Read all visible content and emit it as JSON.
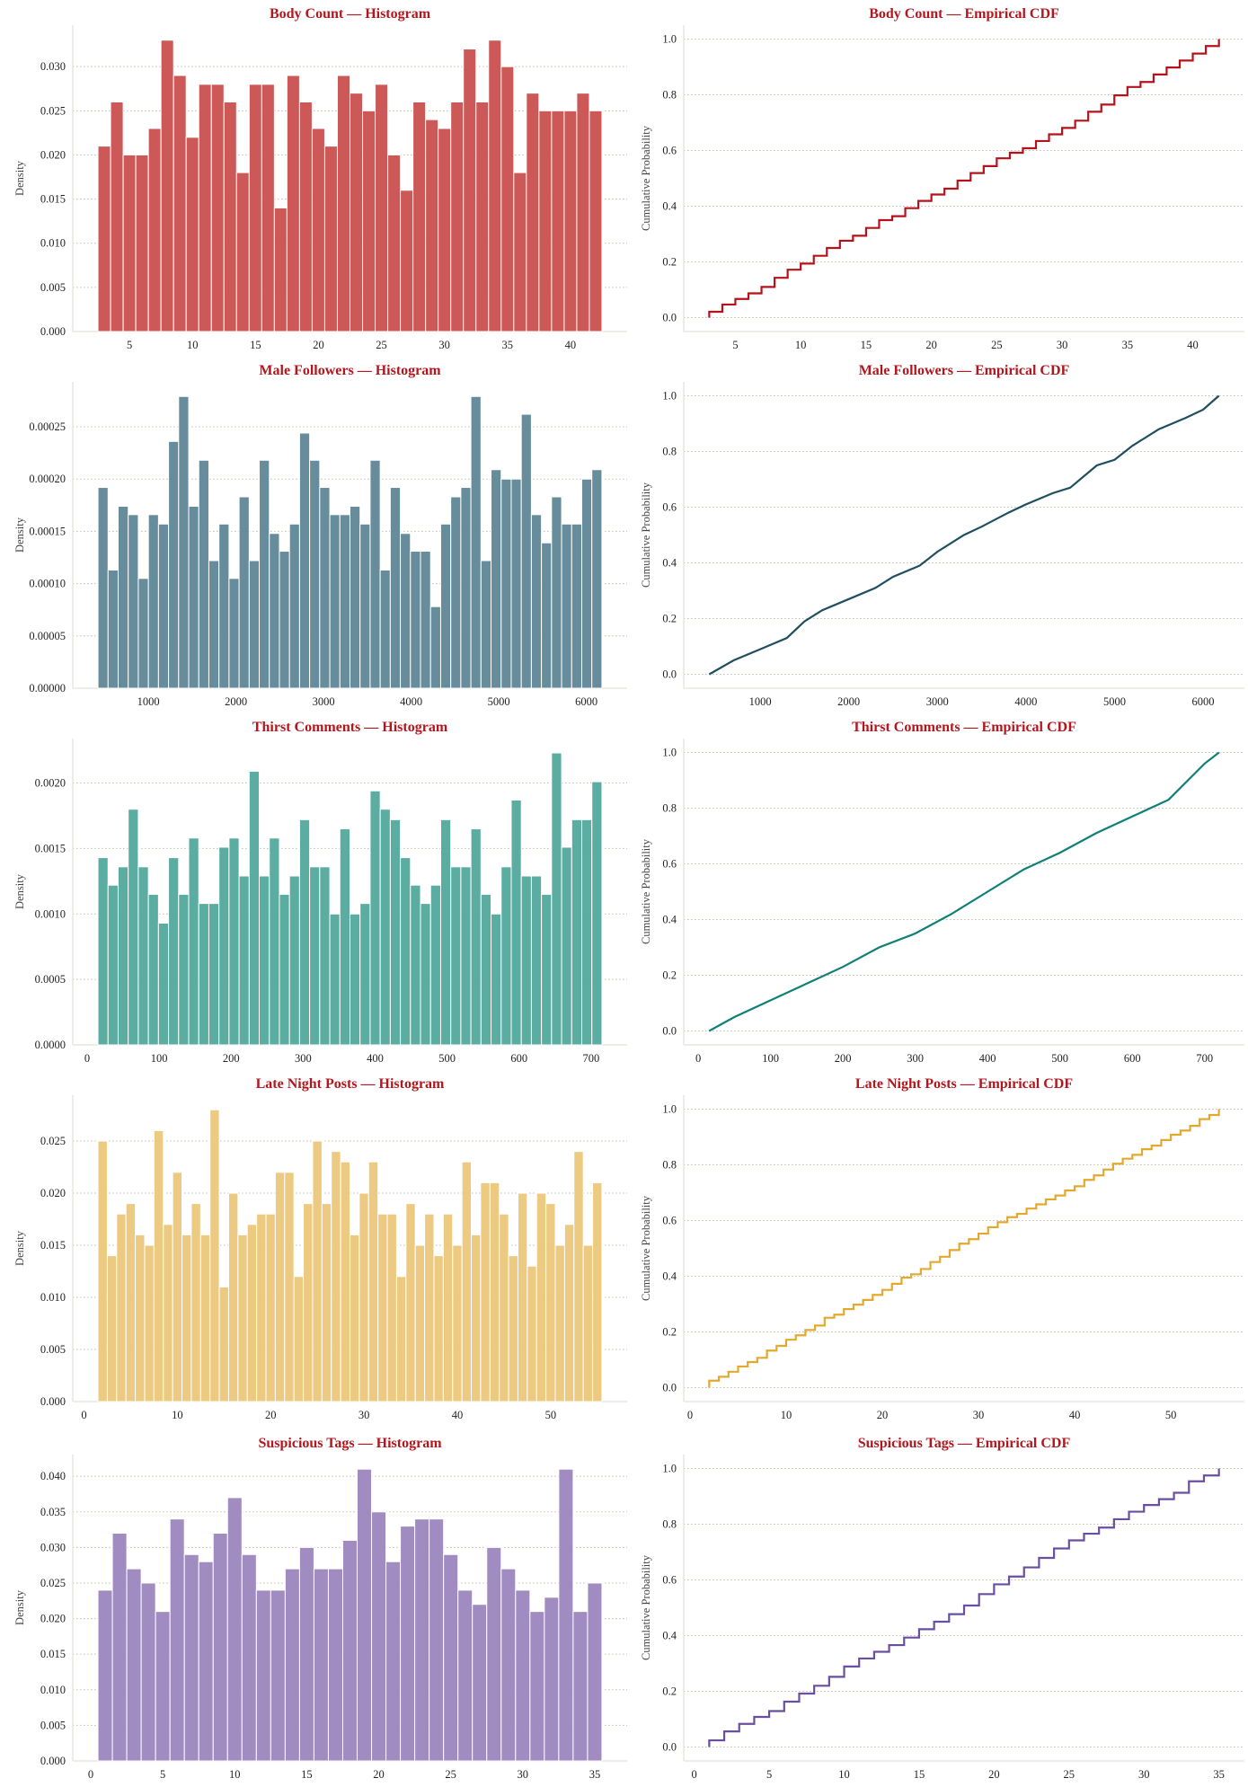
{
  "chart_data": [
    {
      "type": "bar",
      "kind": "histogram",
      "title": "Body Count — Histogram",
      "ylabel": "Density",
      "color": "#c9504f",
      "bin_start": 2.5,
      "bin_width": 1,
      "values": [
        0.021,
        0.026,
        0.02,
        0.02,
        0.023,
        0.033,
        0.029,
        0.022,
        0.028,
        0.028,
        0.026,
        0.018,
        0.028,
        0.028,
        0.014,
        0.029,
        0.026,
        0.023,
        0.021,
        0.029,
        0.027,
        0.025,
        0.028,
        0.02,
        0.016,
        0.026,
        0.024,
        0.023,
        0.026,
        0.032,
        0.026,
        0.033,
        0.03,
        0.018,
        0.027,
        0.025,
        0.025,
        0.025,
        0.027,
        0.025
      ],
      "xlim": [
        0.5,
        44.5
      ],
      "ylim": [
        0,
        0.0347
      ],
      "xticks": [
        "5",
        "10",
        "15",
        "20",
        "25",
        "30",
        "35",
        "40"
      ],
      "xtick_values": [
        5,
        10,
        15,
        20,
        25,
        30,
        35,
        40
      ],
      "yticks": [
        "0.000",
        "0.005",
        "0.010",
        "0.015",
        "0.020",
        "0.025",
        "0.030"
      ],
      "ytick_values": [
        0,
        0.005,
        0.01,
        0.015,
        0.02,
        0.025,
        0.03
      ],
      "grid": "y-dotted"
    },
    {
      "type": "line",
      "kind": "ecdf-step",
      "title": "Body Count — Empirical CDF",
      "ylabel": "Cumulative Probability",
      "color": "#b5121b",
      "x": [
        3,
        4,
        5,
        6,
        7,
        8,
        9,
        10,
        11,
        12,
        13,
        14,
        15,
        16,
        17,
        18,
        19,
        20,
        21,
        22,
        23,
        24,
        25,
        26,
        27,
        28,
        29,
        30,
        31,
        32,
        33,
        34,
        35,
        36,
        37,
        38,
        39,
        40,
        41,
        42
      ],
      "y": [
        0.021,
        0.047,
        0.067,
        0.087,
        0.11,
        0.143,
        0.172,
        0.194,
        0.222,
        0.25,
        0.276,
        0.294,
        0.322,
        0.35,
        0.364,
        0.393,
        0.419,
        0.442,
        0.463,
        0.492,
        0.519,
        0.544,
        0.572,
        0.592,
        0.608,
        0.634,
        0.658,
        0.681,
        0.707,
        0.739,
        0.765,
        0.798,
        0.828,
        0.846,
        0.873,
        0.898,
        0.923,
        0.948,
        0.975,
        1.0
      ],
      "xlim": [
        1.05,
        43.95
      ],
      "ylim": [
        -0.05,
        1.05
      ],
      "xticks": [
        "5",
        "10",
        "15",
        "20",
        "25",
        "30",
        "35",
        "40"
      ],
      "xtick_values": [
        5,
        10,
        15,
        20,
        25,
        30,
        35,
        40
      ],
      "yticks": [
        "0.0",
        "0.2",
        "0.4",
        "0.6",
        "0.8",
        "1.0"
      ],
      "ytick_values": [
        0,
        0.2,
        0.4,
        0.6,
        0.8,
        1.0
      ],
      "grid": "y-dotted"
    },
    {
      "type": "bar",
      "kind": "histogram",
      "title": "Male Followers — Histogram",
      "ylabel": "Density",
      "color": "#5f8696",
      "bin_start": 425,
      "bin_width": 115.06,
      "values": [
        0.000192,
        0.000113,
        0.000174,
        0.000166,
        0.000105,
        0.000166,
        0.000157,
        0.000236,
        0.000279,
        0.000174,
        0.000218,
        0.000122,
        0.000157,
        0.000105,
        0.000183,
        0.000122,
        0.000218,
        0.000148,
        0.000131,
        0.000157,
        0.000244,
        0.000218,
        0.000192,
        0.000166,
        0.000166,
        0.000174,
        0.000157,
        0.000218,
        0.000113,
        0.000192,
        0.000148,
        0.000131,
        0.000131,
        7.8e-05,
        0.000157,
        0.000183,
        0.000192,
        0.000279,
        0.000122,
        0.000209,
        0.0002,
        0.0002,
        0.000262,
        0.000166,
        0.000139,
        0.000183,
        0.000157,
        0.000157,
        0.0002,
        0.000209
      ],
      "xlim": [
        137,
        6466
      ],
      "ylim": [
        0,
        0.000293
      ],
      "xticks": [
        "1000",
        "2000",
        "3000",
        "4000",
        "5000",
        "6000"
      ],
      "xtick_values": [
        1000,
        2000,
        3000,
        4000,
        5000,
        6000
      ],
      "yticks": [
        "0.00000",
        "0.00005",
        "0.00010",
        "0.00015",
        "0.00020",
        "0.00025"
      ],
      "ytick_values": [
        0,
        5e-05,
        0.0001,
        0.00015,
        0.0002,
        0.00025
      ],
      "grid": "y-dotted"
    },
    {
      "type": "line",
      "kind": "ecdf",
      "title": "Male Followers — Empirical CDF",
      "ylabel": "Cumulative Probability",
      "color": "#1f4e5f",
      "x": [
        425,
        700,
        1000,
        1300,
        1500,
        1700,
        2000,
        2300,
        2500,
        2800,
        3000,
        3300,
        3500,
        3800,
        4000,
        4300,
        4500,
        4800,
        5000,
        5200,
        5500,
        5800,
        6000,
        6178
      ],
      "y": [
        0,
        0.05,
        0.09,
        0.13,
        0.19,
        0.23,
        0.27,
        0.31,
        0.35,
        0.39,
        0.44,
        0.5,
        0.53,
        0.58,
        0.61,
        0.65,
        0.67,
        0.75,
        0.77,
        0.82,
        0.88,
        0.92,
        0.95,
        1.0
      ],
      "xlim": [
        137,
        6466
      ],
      "ylim": [
        -0.05,
        1.05
      ],
      "xticks": [
        "1000",
        "2000",
        "3000",
        "4000",
        "5000",
        "6000"
      ],
      "xtick_values": [
        1000,
        2000,
        3000,
        4000,
        5000,
        6000
      ],
      "yticks": [
        "0.0",
        "0.2",
        "0.4",
        "0.6",
        "0.8",
        "1.0"
      ],
      "ytick_values": [
        0,
        0.2,
        0.4,
        0.6,
        0.8,
        1.0
      ],
      "grid": "y-dotted"
    },
    {
      "type": "bar",
      "kind": "histogram",
      "title": "Thirst Comments — Histogram",
      "ylabel": "Density",
      "color": "#52a89c",
      "bin_start": 15,
      "bin_width": 14,
      "values": [
        0.00143,
        0.00122,
        0.00136,
        0.0018,
        0.00136,
        0.00115,
        0.00093,
        0.00143,
        0.00115,
        0.00158,
        0.00108,
        0.00108,
        0.00151,
        0.00158,
        0.00129,
        0.00209,
        0.00129,
        0.00158,
        0.00115,
        0.00129,
        0.00172,
        0.00136,
        0.00136,
        0.001,
        0.00165,
        0.001,
        0.00108,
        0.00194,
        0.0018,
        0.00172,
        0.00143,
        0.00122,
        0.00108,
        0.00122,
        0.00172,
        0.00136,
        0.00136,
        0.00165,
        0.00115,
        0.001,
        0.00136,
        0.00187,
        0.00129,
        0.00129,
        0.00115,
        0.00223,
        0.00151,
        0.00172,
        0.00172,
        0.00201
      ],
      "xlim": [
        -20,
        750
      ],
      "ylim": [
        0,
        0.00234
      ],
      "xticks": [
        "0",
        "100",
        "200",
        "300",
        "400",
        "500",
        "600",
        "700"
      ],
      "xtick_values": [
        0,
        100,
        200,
        300,
        400,
        500,
        600,
        700
      ],
      "yticks": [
        "0.0000",
        "0.0005",
        "0.0010",
        "0.0015",
        "0.0020"
      ],
      "ytick_values": [
        0,
        0.0005,
        0.001,
        0.0015,
        0.002
      ],
      "grid": "y-dotted"
    },
    {
      "type": "line",
      "kind": "ecdf",
      "title": "Thirst Comments — Empirical CDF",
      "ylabel": "Cumulative Probability",
      "color": "#0e8075",
      "x": [
        15,
        50,
        100,
        150,
        200,
        250,
        300,
        350,
        400,
        450,
        500,
        550,
        600,
        650,
        700,
        720
      ],
      "y": [
        0,
        0.05,
        0.11,
        0.17,
        0.23,
        0.3,
        0.35,
        0.42,
        0.5,
        0.58,
        0.64,
        0.71,
        0.77,
        0.83,
        0.96,
        1.0
      ],
      "xlim": [
        -20,
        755
      ],
      "ylim": [
        -0.05,
        1.05
      ],
      "xticks": [
        "0",
        "100",
        "200",
        "300",
        "400",
        "500",
        "600",
        "700"
      ],
      "xtick_values": [
        0,
        100,
        200,
        300,
        400,
        500,
        600,
        700
      ],
      "yticks": [
        "0.0",
        "0.2",
        "0.4",
        "0.6",
        "0.8",
        "1.0"
      ],
      "ytick_values": [
        0,
        0.2,
        0.4,
        0.6,
        0.8,
        1.0
      ],
      "grid": "y-dotted"
    },
    {
      "type": "bar",
      "kind": "histogram",
      "title": "Late Night Posts — Histogram",
      "ylabel": "Density",
      "color": "#ecc77a",
      "bin_start": 1.5,
      "bin_width": 1,
      "values": [
        0.025,
        0.014,
        0.018,
        0.019,
        0.016,
        0.015,
        0.026,
        0.017,
        0.022,
        0.016,
        0.019,
        0.016,
        0.028,
        0.011,
        0.02,
        0.016,
        0.017,
        0.018,
        0.018,
        0.022,
        0.022,
        0.012,
        0.019,
        0.025,
        0.019,
        0.024,
        0.023,
        0.016,
        0.02,
        0.023,
        0.018,
        0.018,
        0.012,
        0.019,
        0.015,
        0.018,
        0.014,
        0.018,
        0.015,
        0.023,
        0.016,
        0.021,
        0.021,
        0.018,
        0.014,
        0.02,
        0.013,
        0.02,
        0.019,
        0.015,
        0.017,
        0.024,
        0.015,
        0.021
      ],
      "xlim": [
        -1.2,
        58.2
      ],
      "ylim": [
        0,
        0.0294
      ],
      "xticks": [
        "0",
        "10",
        "20",
        "30",
        "40",
        "50"
      ],
      "xtick_values": [
        0,
        10,
        20,
        30,
        40,
        50
      ],
      "yticks": [
        "0.000",
        "0.005",
        "0.010",
        "0.015",
        "0.020",
        "0.025"
      ],
      "ytick_values": [
        0,
        0.005,
        0.01,
        0.015,
        0.02,
        0.025
      ],
      "grid": "y-dotted"
    },
    {
      "type": "line",
      "kind": "ecdf-step",
      "title": "Late Night Posts — Empirical CDF",
      "ylabel": "Cumulative Probability",
      "color": "#e3a92e",
      "x": [
        2,
        3,
        4,
        5,
        6,
        7,
        8,
        9,
        10,
        11,
        12,
        13,
        14,
        15,
        16,
        17,
        18,
        19,
        20,
        21,
        22,
        23,
        24,
        25,
        26,
        27,
        28,
        29,
        30,
        31,
        32,
        33,
        34,
        35,
        36,
        37,
        38,
        39,
        40,
        41,
        42,
        43,
        44,
        45,
        46,
        47,
        48,
        49,
        50,
        51,
        52,
        53,
        54,
        55
      ],
      "y": [
        0.025,
        0.039,
        0.057,
        0.076,
        0.092,
        0.107,
        0.133,
        0.15,
        0.172,
        0.188,
        0.207,
        0.223,
        0.251,
        0.262,
        0.282,
        0.298,
        0.315,
        0.333,
        0.351,
        0.373,
        0.395,
        0.407,
        0.426,
        0.451,
        0.47,
        0.494,
        0.517,
        0.533,
        0.553,
        0.576,
        0.594,
        0.612,
        0.624,
        0.643,
        0.658,
        0.676,
        0.69,
        0.708,
        0.723,
        0.746,
        0.762,
        0.783,
        0.804,
        0.822,
        0.836,
        0.856,
        0.869,
        0.889,
        0.908,
        0.923,
        0.94,
        0.964,
        0.979,
        1.0
      ],
      "xlim": [
        -0.65,
        57.65
      ],
      "ylim": [
        -0.05,
        1.05
      ],
      "xticks": [
        "0",
        "10",
        "20",
        "30",
        "40",
        "50"
      ],
      "xtick_values": [
        0,
        10,
        20,
        30,
        40,
        50
      ],
      "yticks": [
        "0.0",
        "0.2",
        "0.4",
        "0.6",
        "0.8",
        "1.0"
      ],
      "ytick_values": [
        0,
        0.2,
        0.4,
        0.6,
        0.8,
        1.0
      ],
      "grid": "y-dotted"
    },
    {
      "type": "bar",
      "kind": "histogram",
      "title": "Suspicious Tags — Histogram",
      "ylabel": "Density",
      "color": "#9b86be",
      "bin_start": 0.5,
      "bin_width": 1,
      "values": [
        0.024,
        0.032,
        0.027,
        0.025,
        0.021,
        0.034,
        0.029,
        0.028,
        0.032,
        0.037,
        0.029,
        0.024,
        0.024,
        0.027,
        0.03,
        0.027,
        0.027,
        0.031,
        0.041,
        0.035,
        0.028,
        0.033,
        0.034,
        0.034,
        0.029,
        0.024,
        0.022,
        0.03,
        0.027,
        0.024,
        0.021,
        0.023,
        0.041,
        0.021,
        0.025
      ],
      "xlim": [
        -1.25,
        37.25
      ],
      "ylim": [
        0,
        0.04305
      ],
      "xticks": [
        "0",
        "5",
        "10",
        "15",
        "20",
        "25",
        "30",
        "35"
      ],
      "xtick_values": [
        0,
        5,
        10,
        15,
        20,
        25,
        30,
        35
      ],
      "yticks": [
        "0.000",
        "0.005",
        "0.010",
        "0.015",
        "0.020",
        "0.025",
        "0.030",
        "0.035",
        "0.040"
      ],
      "ytick_values": [
        0,
        0.005,
        0.01,
        0.015,
        0.02,
        0.025,
        0.03,
        0.035,
        0.04
      ],
      "grid": "y-dotted"
    },
    {
      "type": "line",
      "kind": "ecdf-step",
      "title": "Suspicious Tags — Empirical CDF",
      "ylabel": "Cumulative Probability",
      "color": "#6a4fa0",
      "x": [
        1,
        2,
        3,
        4,
        5,
        6,
        7,
        8,
        9,
        10,
        11,
        12,
        13,
        14,
        15,
        16,
        17,
        18,
        19,
        20,
        21,
        22,
        23,
        24,
        25,
        26,
        27,
        28,
        29,
        30,
        31,
        32,
        33,
        34,
        35
      ],
      "y": [
        0.024,
        0.056,
        0.083,
        0.108,
        0.129,
        0.163,
        0.192,
        0.22,
        0.252,
        0.289,
        0.318,
        0.342,
        0.366,
        0.393,
        0.423,
        0.45,
        0.477,
        0.508,
        0.549,
        0.584,
        0.612,
        0.645,
        0.679,
        0.713,
        0.742,
        0.766,
        0.788,
        0.818,
        0.845,
        0.869,
        0.89,
        0.913,
        0.954,
        0.975,
        1.0
      ],
      "xlim": [
        -0.7,
        36.7
      ],
      "ylim": [
        -0.05,
        1.05
      ],
      "xticks": [
        "0",
        "5",
        "10",
        "15",
        "20",
        "25",
        "30",
        "35"
      ],
      "xtick_values": [
        0,
        5,
        10,
        15,
        20,
        25,
        30,
        35
      ],
      "yticks": [
        "0.0",
        "0.2",
        "0.4",
        "0.6",
        "0.8",
        "1.0"
      ],
      "ytick_values": [
        0,
        0.2,
        0.4,
        0.6,
        0.8,
        1.0
      ],
      "grid": "y-dotted"
    }
  ]
}
